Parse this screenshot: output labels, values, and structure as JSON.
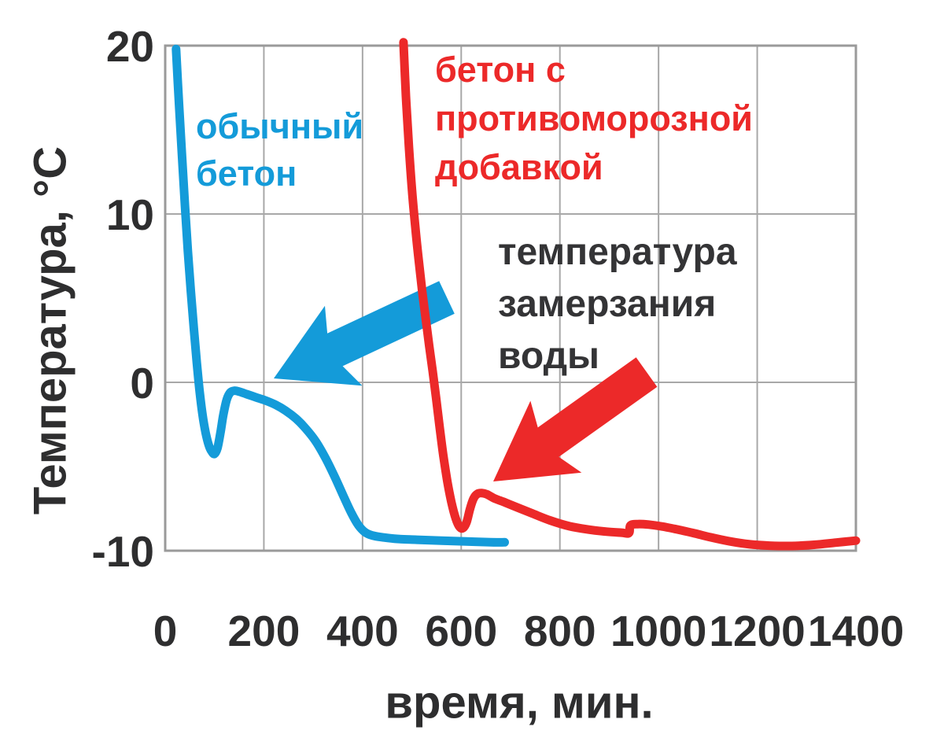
{
  "colors": {
    "blue": "#149bd9",
    "red": "#ec2929",
    "text_dark": "#2e2e2f",
    "grid": "#a8a8a8",
    "plot_border": "#9a9a9a",
    "background": "#ffffff"
  },
  "chart_data": {
    "type": "line",
    "title": "",
    "xlabel": "время, мин.",
    "ylabel": "Температура, °C",
    "xlim": [
      0,
      1400
    ],
    "ylim": [
      -10,
      20
    ],
    "xticks": [
      0,
      200,
      400,
      600,
      800,
      1000,
      1200,
      1400
    ],
    "yticks": [
      20,
      10,
      0,
      -10
    ],
    "grid": true,
    "legend_position": "inline-annotations",
    "series": [
      {
        "name": "обычный бетон",
        "color": "#149bd9",
        "points": [
          [
            22,
            19.8
          ],
          [
            28,
            16.5
          ],
          [
            34,
            13.5
          ],
          [
            40,
            10.5
          ],
          [
            46,
            7.8
          ],
          [
            52,
            5.4
          ],
          [
            58,
            3.2
          ],
          [
            64,
            1.2
          ],
          [
            70,
            -0.6
          ],
          [
            76,
            -2.0
          ],
          [
            82,
            -3.0
          ],
          [
            88,
            -3.7
          ],
          [
            94,
            -4.1
          ],
          [
            100,
            -4.25
          ],
          [
            106,
            -3.9
          ],
          [
            112,
            -3.0
          ],
          [
            118,
            -1.9
          ],
          [
            125,
            -1.0
          ],
          [
            132,
            -0.6
          ],
          [
            140,
            -0.5
          ],
          [
            150,
            -0.55
          ],
          [
            165,
            -0.7
          ],
          [
            185,
            -0.9
          ],
          [
            205,
            -1.1
          ],
          [
            225,
            -1.35
          ],
          [
            245,
            -1.7
          ],
          [
            265,
            -2.15
          ],
          [
            285,
            -2.75
          ],
          [
            305,
            -3.5
          ],
          [
            325,
            -4.5
          ],
          [
            345,
            -5.7
          ],
          [
            362,
            -6.8
          ],
          [
            378,
            -7.8
          ],
          [
            392,
            -8.5
          ],
          [
            405,
            -8.9
          ],
          [
            420,
            -9.1
          ],
          [
            440,
            -9.2
          ],
          [
            470,
            -9.3
          ],
          [
            510,
            -9.35
          ],
          [
            560,
            -9.4
          ],
          [
            610,
            -9.45
          ],
          [
            660,
            -9.5
          ],
          [
            688,
            -9.5
          ]
        ]
      },
      {
        "name": "бетон с противоморозной добавкой",
        "color": "#ec2929",
        "points": [
          [
            483,
            20.2
          ],
          [
            488,
            17
          ],
          [
            494,
            14
          ],
          [
            500,
            11.5
          ],
          [
            507,
            9.2
          ],
          [
            514,
            7.2
          ],
          [
            521,
            5.4
          ],
          [
            528,
            3.8
          ],
          [
            535,
            2.2
          ],
          [
            542,
            0.7
          ],
          [
            549,
            -0.9
          ],
          [
            556,
            -2.6
          ],
          [
            564,
            -4.4
          ],
          [
            572,
            -5.9
          ],
          [
            580,
            -7.1
          ],
          [
            589,
            -8.1
          ],
          [
            597,
            -8.6
          ],
          [
            604,
            -8.65
          ],
          [
            611,
            -8.3
          ],
          [
            618,
            -7.5
          ],
          [
            625,
            -6.9
          ],
          [
            633,
            -6.62
          ],
          [
            642,
            -6.58
          ],
          [
            652,
            -6.65
          ],
          [
            668,
            -6.9
          ],
          [
            690,
            -7.15
          ],
          [
            715,
            -7.45
          ],
          [
            745,
            -7.8
          ],
          [
            780,
            -8.2
          ],
          [
            820,
            -8.55
          ],
          [
            860,
            -8.75
          ],
          [
            895,
            -8.87
          ],
          [
            925,
            -8.93
          ],
          [
            940,
            -8.95
          ],
          [
            943,
            -8.5
          ],
          [
            958,
            -8.42
          ],
          [
            980,
            -8.45
          ],
          [
            1005,
            -8.55
          ],
          [
            1035,
            -8.72
          ],
          [
            1070,
            -8.95
          ],
          [
            1105,
            -9.2
          ],
          [
            1145,
            -9.45
          ],
          [
            1185,
            -9.62
          ],
          [
            1225,
            -9.7
          ],
          [
            1270,
            -9.72
          ],
          [
            1315,
            -9.65
          ],
          [
            1360,
            -9.52
          ],
          [
            1400,
            -9.4
          ]
        ]
      }
    ],
    "annotations": {
      "label_blue": "обычный\nбетон",
      "label_red": "бетон с\nпротивоморозной\nдобавкой",
      "label_freezing": "температура\nзамерзания\nводы",
      "arrows": [
        {
          "name": "blue-arrow",
          "color": "#149bd9",
          "tip": [
            348,
            481
          ],
          "tail": [
            568,
            378
          ]
        },
        {
          "name": "red-arrow",
          "color": "#ec2929",
          "tip": [
            627,
            612
          ],
          "tail": [
            822,
            473
          ]
        }
      ]
    }
  }
}
